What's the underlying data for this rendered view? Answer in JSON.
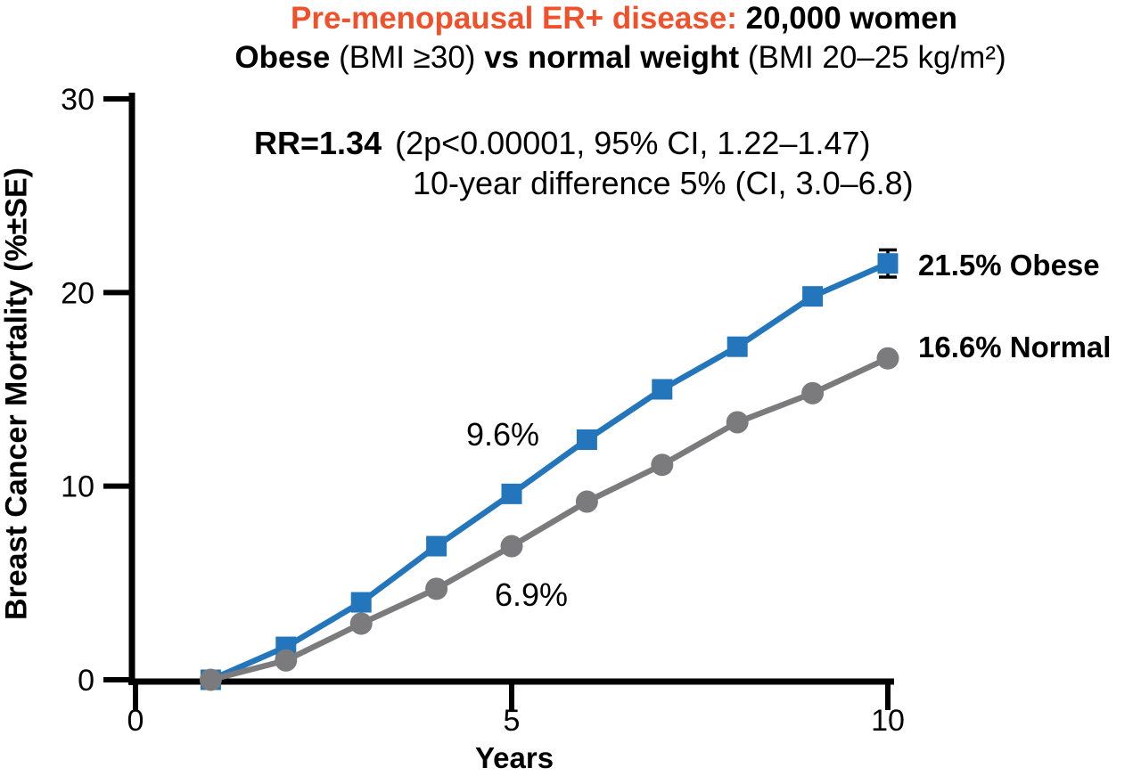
{
  "title": {
    "line1_highlight": "Pre-menopausal ER+ disease:",
    "line1_rest": " 20,000 women",
    "line2_bold1": "Obese",
    "line2_reg1": " (BMI ≥30) ",
    "line2_bold2": "vs normal weight",
    "line2_reg2": " (BMI 20–25 kg/m²)"
  },
  "colors": {
    "obese": "#2376bb",
    "normal": "#7b7b7d",
    "title_highlight": "#f0502a",
    "axis": "#000000"
  },
  "chart_data": {
    "type": "line",
    "x": [
      1,
      2,
      3,
      4,
      5,
      6,
      7,
      8,
      9,
      10
    ],
    "series": [
      {
        "name": "Obese",
        "marker": "square",
        "color_key": "obese",
        "values": [
          0,
          1.7,
          4.0,
          6.9,
          9.6,
          12.4,
          15.0,
          17.2,
          19.8,
          21.5
        ],
        "se_last": 0.7
      },
      {
        "name": "Normal",
        "marker": "circle",
        "color_key": "normal",
        "values": [
          0,
          1.0,
          2.9,
          4.7,
          6.9,
          9.2,
          11.1,
          13.3,
          14.8,
          16.6
        ]
      }
    ],
    "xlabel": "Years",
    "ylabel": "Breast Cancer Mortality (%±SE)",
    "xlim": [
      0,
      10
    ],
    "ylim": [
      0,
      30
    ],
    "xticks": [
      0,
      5,
      10
    ],
    "yticks": [
      0,
      10,
      20,
      30
    ],
    "grid": false,
    "legend_position": "right-of-last-points",
    "annotations": {
      "rr_bold": "RR=1.34",
      "rr_detail": "(2p<0.00001, 95% CI, 1.22–1.47)",
      "diff_line": "10-year difference 5% (CI, 3.0–6.8)",
      "obese_mid": "9.6%",
      "normal_mid": "6.9%",
      "obese_end": "21.5% Obese",
      "normal_end": "16.6% Normal"
    }
  }
}
